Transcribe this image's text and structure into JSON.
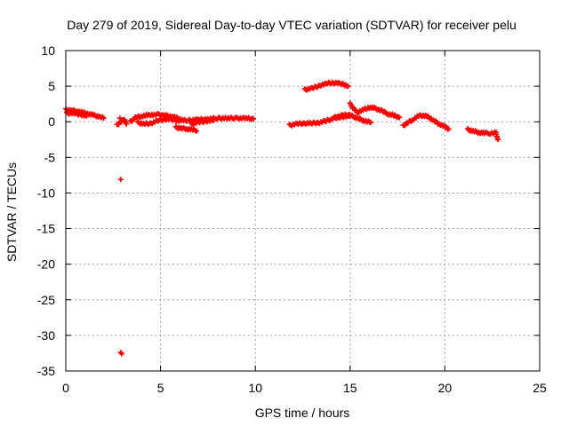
{
  "colors": {
    "series": "#ff0000",
    "grid": "#a0a0a0",
    "axis": "#000000",
    "background": "#ffffff"
  },
  "chart_data": {
    "type": "scatter",
    "title": "Day 279 of 2019, Sidereal Day-to-day VTEC variation (SDTVAR) for receiver pelu",
    "xlabel": "GPS time / hours",
    "ylabel": "SDTVAR / TECUs",
    "xlim": [
      0,
      25
    ],
    "ylim": [
      -35,
      10
    ],
    "xticks": [
      0,
      5,
      10,
      15,
      20,
      25
    ],
    "yticks": [
      10,
      5,
      0,
      -5,
      -10,
      -15,
      -20,
      -25,
      -30,
      -35
    ],
    "grid": true,
    "marker": "plus",
    "series": [
      {
        "name": "SDTVAR",
        "segments": [
          [
            [
              0.0,
              1.7
            ],
            [
              0.3,
              1.6
            ],
            [
              0.6,
              1.5
            ],
            [
              0.9,
              1.3
            ],
            [
              1.2,
              1.1
            ],
            [
              1.5,
              0.9
            ],
            [
              1.8,
              0.7
            ],
            [
              2.0,
              0.5
            ]
          ],
          [
            [
              0.05,
              1.2
            ],
            [
              0.4,
              1.2
            ],
            [
              0.8,
              1.0
            ],
            [
              1.1,
              0.8
            ]
          ],
          [
            [
              2.7,
              -0.5
            ],
            [
              2.9,
              0.0
            ],
            [
              3.1,
              0.3
            ],
            [
              3.2,
              -0.3
            ]
          ],
          [
            [
              3.4,
              0.0
            ],
            [
              3.7,
              0.6
            ],
            [
              4.0,
              0.8
            ],
            [
              4.3,
              0.9
            ],
            [
              4.6,
              1.0
            ],
            [
              4.9,
              1.0
            ],
            [
              5.2,
              0.9
            ],
            [
              5.5,
              0.8
            ],
            [
              5.8,
              0.6
            ],
            [
              6.1,
              0.3
            ],
            [
              6.4,
              0.1
            ]
          ],
          [
            [
              3.8,
              -0.1
            ],
            [
              4.1,
              -0.3
            ],
            [
              4.5,
              -0.2
            ],
            [
              4.9,
              0.2
            ],
            [
              5.3,
              0.4
            ],
            [
              5.7,
              0.3
            ],
            [
              6.0,
              0.1
            ]
          ],
          [
            [
              5.8,
              -0.8
            ],
            [
              6.1,
              -0.9
            ],
            [
              6.4,
              -1.0
            ],
            [
              6.7,
              -1.1
            ],
            [
              6.9,
              -1.3
            ]
          ],
          [
            [
              6.5,
              0.2
            ],
            [
              7.0,
              0.3
            ],
            [
              7.5,
              0.4
            ],
            [
              8.0,
              0.5
            ],
            [
              8.5,
              0.5
            ],
            [
              9.0,
              0.5
            ],
            [
              9.5,
              0.5
            ],
            [
              9.9,
              0.4
            ]
          ],
          [
            [
              6.6,
              -0.3
            ],
            [
              7.0,
              -0.1
            ],
            [
              7.4,
              0.1
            ],
            [
              7.8,
              0.2
            ]
          ],
          [
            [
              11.8,
              -0.5
            ],
            [
              12.2,
              -0.3
            ],
            [
              12.6,
              -0.2
            ],
            [
              13.0,
              -0.2
            ],
            [
              13.4,
              -0.1
            ],
            [
              13.8,
              0.2
            ],
            [
              14.2,
              0.5
            ],
            [
              14.6,
              0.7
            ],
            [
              15.0,
              0.8
            ]
          ],
          [
            [
              12.6,
              4.5
            ],
            [
              13.0,
              4.7
            ],
            [
              13.4,
              5.1
            ],
            [
              13.8,
              5.4
            ],
            [
              14.2,
              5.5
            ],
            [
              14.6,
              5.3
            ],
            [
              14.9,
              5.0
            ]
          ],
          [
            [
              14.2,
              0.6
            ],
            [
              14.6,
              0.9
            ],
            [
              15.0,
              1.0
            ]
          ],
          [
            [
              15.0,
              2.5
            ],
            [
              15.2,
              1.8
            ],
            [
              15.4,
              1.3
            ],
            [
              15.7,
              1.7
            ],
            [
              16.0,
              2.0
            ],
            [
              16.3,
              1.9
            ],
            [
              16.7,
              1.5
            ],
            [
              17.0,
              1.1
            ],
            [
              17.3,
              0.9
            ],
            [
              17.6,
              0.6
            ]
          ],
          [
            [
              15.1,
              0.8
            ],
            [
              15.4,
              0.5
            ],
            [
              15.7,
              0.2
            ],
            [
              16.1,
              -0.1
            ]
          ],
          [
            [
              17.8,
              -0.6
            ],
            [
              18.0,
              -0.2
            ],
            [
              18.3,
              0.3
            ],
            [
              18.6,
              0.8
            ],
            [
              18.8,
              0.9
            ],
            [
              19.1,
              0.7
            ],
            [
              19.4,
              0.2
            ],
            [
              19.7,
              -0.3
            ],
            [
              20.0,
              -0.7
            ],
            [
              20.2,
              -1.0
            ]
          ],
          [
            [
              21.2,
              -1.1
            ],
            [
              21.5,
              -1.3
            ],
            [
              21.8,
              -1.5
            ],
            [
              22.1,
              -1.6
            ],
            [
              22.4,
              -1.6
            ],
            [
              22.7,
              -1.6
            ],
            [
              22.8,
              -2.5
            ]
          ]
        ],
        "points": [
          [
            2.9,
            -8.1
          ],
          [
            2.9,
            -32.4
          ],
          [
            2.95,
            -32.6
          ],
          [
            2.85,
            0.5
          ]
        ]
      }
    ]
  }
}
